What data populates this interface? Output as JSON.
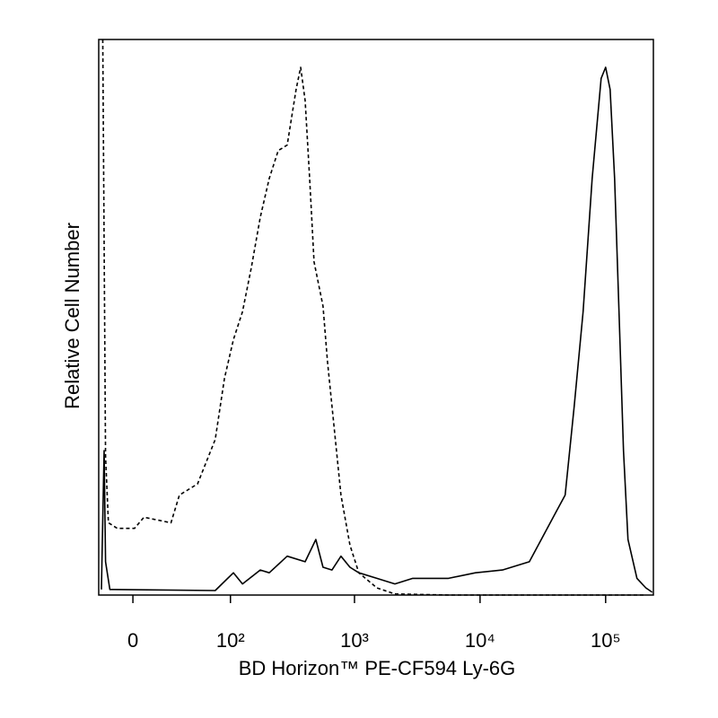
{
  "chart_data": {
    "type": "line",
    "x_label": "BD Horizon™ PE-CF594 Ly-6G",
    "y_label": "Relative Cell Number",
    "xscale": "biexponential",
    "xlim": [
      -23,
      240000
    ],
    "xticks": [
      0,
      {
        "value": 100,
        "label": "10²"
      },
      {
        "value": 1000,
        "label": "10³"
      },
      {
        "value": 10000,
        "label": "10⁴"
      },
      {
        "value": 100000,
        "label": "10⁵"
      }
    ],
    "ylim": [
      0,
      100
    ],
    "grid": false,
    "series": [
      {
        "color": "#000000",
        "dash": "dashed",
        "x": [
          -20,
          -18,
          -16,
          -10,
          1,
          7,
          26,
          33,
          51,
          74,
          89,
          106,
          126,
          149,
          176,
          208,
          246,
          290,
          342,
          372,
          404,
          439,
          476,
          561,
          609,
          718,
          780,
          920,
          1083,
          1507,
          2097,
          5600,
          200000
        ],
        "values": [
          100,
          25,
          13,
          12,
          12,
          14,
          13,
          18,
          20,
          28,
          39,
          46,
          51,
          59,
          68,
          75,
          80,
          81,
          91,
          95,
          89,
          75,
          60,
          52,
          42,
          26,
          18,
          9,
          4,
          1.3,
          0.2,
          0,
          0
        ]
      },
      {
        "color": "#000000",
        "dash": "solid",
        "x": [
          -21,
          -19,
          -18,
          -15,
          74,
          106,
          126,
          176,
          208,
          290,
          404,
          492,
          561,
          662,
          780,
          920,
          1083,
          1507,
          2097,
          2913,
          5600,
          9190,
          15070,
          24700,
          29100,
          40400,
          47600,
          56200,
          66200,
          78100,
          92100,
          100000,
          108500,
          117800,
          127800,
          138800,
          150600,
          177500,
          209000,
          235000
        ],
        "values": [
          1,
          26,
          6,
          1,
          0.8,
          4,
          2,
          4.5,
          4,
          7,
          6,
          10,
          5,
          4.5,
          7,
          5,
          4,
          3,
          2,
          3,
          3,
          4,
          4.5,
          6,
          9,
          15,
          18,
          34,
          51,
          75,
          93,
          95,
          91,
          75,
          51,
          26,
          10,
          3,
          1.3,
          0.5
        ]
      }
    ]
  }
}
